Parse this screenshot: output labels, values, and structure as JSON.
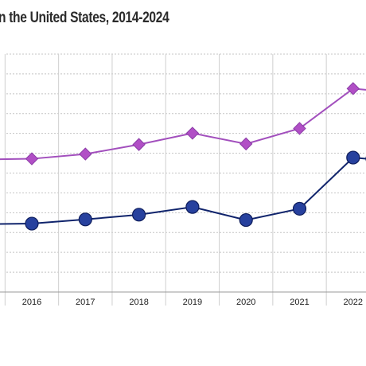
{
  "chart_data": {
    "type": "line",
    "title": "n the United States, 2014-2024",
    "categories": [
      "2016",
      "2017",
      "2018",
      "2019",
      "2020",
      "2021",
      "2022"
    ],
    "series": [
      {
        "marker": "diamond",
        "color": "#a24fbd",
        "fill": "#b14fc6",
        "values": [
          44.8,
          46.4,
          49.6,
          53.4,
          49.8,
          55.0,
          68.4
        ]
      },
      {
        "marker": "circle",
        "color": "#10246c",
        "fill": "#27419e",
        "values": [
          23.0,
          24.4,
          26.0,
          28.6,
          24.2,
          28.0,
          45.2
        ]
      }
    ],
    "ylim": [
      0,
      80
    ],
    "grid": true,
    "legend": "none"
  }
}
